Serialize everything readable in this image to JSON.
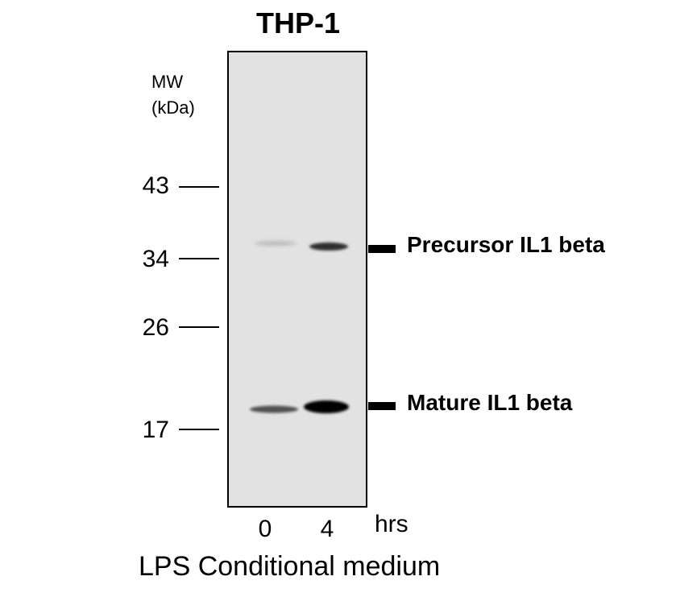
{
  "title": "THP-1",
  "mw_label": [
    "MW",
    "(kDa)"
  ],
  "mw_markers": [
    "43",
    "34",
    "26",
    "17"
  ],
  "bands": [
    {
      "label": "Precursor IL1 beta"
    },
    {
      "label": "Mature IL1 beta"
    }
  ],
  "lanes": [
    "0",
    "4"
  ],
  "lane_unit": "hrs",
  "treatment": "LPS Conditional medium",
  "colors": {
    "blot_background": "#e2e2e2",
    "band": "#000000"
  }
}
